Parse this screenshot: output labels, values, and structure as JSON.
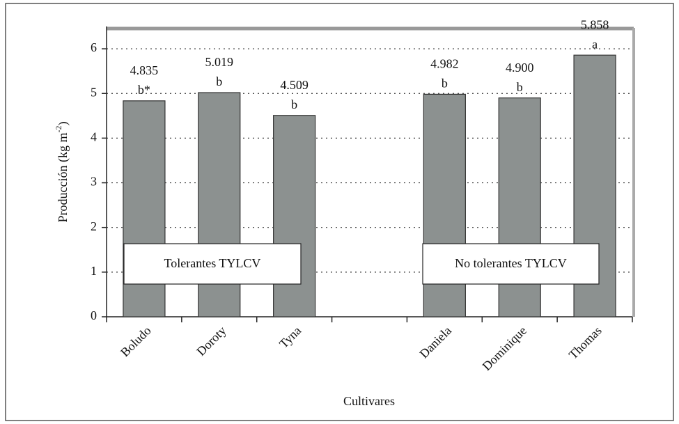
{
  "chart_data": {
    "type": "bar",
    "y_label": "Producción (kg m",
    "y_label_sup": "-2",
    "y_label_end": ")",
    "x_label": "Cultivares",
    "categories": [
      "Boludo",
      "Doroty",
      "Tyna",
      null,
      "Daniela",
      "Dominique",
      "Thomas"
    ],
    "values": [
      4.835,
      5.019,
      4.509,
      null,
      4.982,
      4.9,
      5.858
    ],
    "value_labels": [
      "4.835",
      "5.019",
      "4.509",
      null,
      "4.982",
      "4.900",
      "5.858"
    ],
    "letters": [
      "b*",
      "b",
      "b",
      null,
      "b",
      "b",
      "a"
    ],
    "groups": [
      "Tolerantes TYLCV",
      "No tolerantes TYLCV"
    ],
    "color": "#8c9190",
    "ylim": [
      0,
      6.5
    ],
    "yticks": [
      0,
      1,
      2,
      3,
      4,
      5,
      6
    ],
    "grid": true
  }
}
